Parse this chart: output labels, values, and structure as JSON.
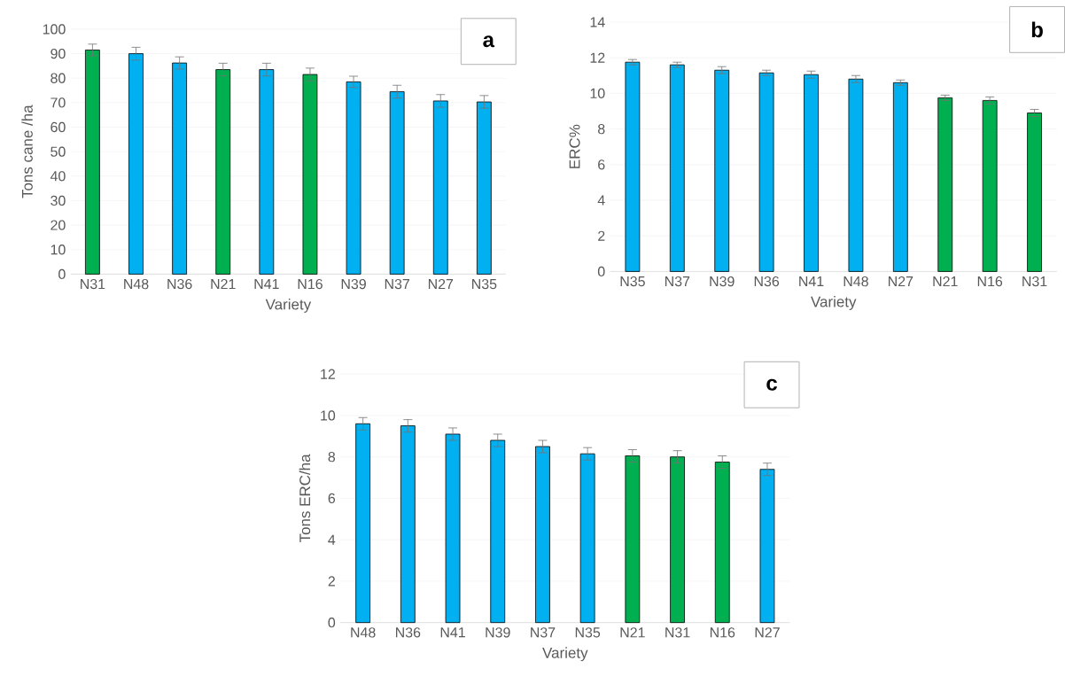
{
  "chart_data": [
    {
      "type": "bar",
      "xlabel": "Variety",
      "ylabel": "Tons cane /ha",
      "annotations": [
        "a"
      ],
      "categories": [
        "N31",
        "N48",
        "N36",
        "N21",
        "N41",
        "N16",
        "N39",
        "N37",
        "N27",
        "N35"
      ],
      "values": [
        91.5,
        90,
        86.2,
        83.5,
        83.5,
        81.5,
        78.5,
        74.5,
        70.7,
        70.3
      ],
      "errors": [
        2.4,
        2.6,
        2.5,
        2.6,
        2.6,
        2.6,
        2.3,
        2.6,
        2.6,
        2.6
      ],
      "colors": [
        "#00b050",
        "#00b0f0",
        "#00b0f0",
        "#00b050",
        "#00b0f0",
        "#00b050",
        "#00b0f0",
        "#00b0f0",
        "#00b0f0",
        "#00b0f0"
      ],
      "ylim": [
        0,
        100
      ],
      "yticks": [
        0,
        10,
        20,
        30,
        40,
        50,
        60,
        70,
        80,
        90,
        100
      ],
      "grid": "y"
    },
    {
      "type": "bar",
      "xlabel": "Variety",
      "ylabel": "ERC%",
      "annotations": [
        "b"
      ],
      "categories": [
        "N35",
        "N37",
        "N39",
        "N36",
        "N41",
        "N48",
        "N27",
        "N21",
        "N16",
        "N31"
      ],
      "values": [
        11.75,
        11.6,
        11.3,
        11.15,
        11.05,
        10.8,
        10.6,
        9.75,
        9.6,
        8.9
      ],
      "errors": [
        0.15,
        0.15,
        0.2,
        0.15,
        0.2,
        0.2,
        0.15,
        0.15,
        0.2,
        0.2
      ],
      "colors": [
        "#00b0f0",
        "#00b0f0",
        "#00b0f0",
        "#00b0f0",
        "#00b0f0",
        "#00b0f0",
        "#00b0f0",
        "#00b050",
        "#00b050",
        "#00b050"
      ],
      "ylim": [
        0,
        14
      ],
      "yticks": [
        0,
        2,
        4,
        6,
        8,
        10,
        12,
        14
      ],
      "grid": "y"
    },
    {
      "type": "bar",
      "xlabel": "Variety",
      "ylabel": "Tons ERC/ha",
      "annotations": [
        "c"
      ],
      "categories": [
        "N48",
        "N36",
        "N41",
        "N39",
        "N37",
        "N35",
        "N21",
        "N31",
        "N16",
        "N27"
      ],
      "values": [
        9.6,
        9.5,
        9.1,
        8.8,
        8.5,
        8.15,
        8.05,
        8.0,
        7.75,
        7.4
      ],
      "errors": [
        0.3,
        0.3,
        0.3,
        0.3,
        0.3,
        0.3,
        0.3,
        0.3,
        0.3,
        0.3
      ],
      "colors": [
        "#00b0f0",
        "#00b0f0",
        "#00b0f0",
        "#00b0f0",
        "#00b0f0",
        "#00b0f0",
        "#00b050",
        "#00b050",
        "#00b050",
        "#00b0f0"
      ],
      "ylim": [
        0,
        12
      ],
      "yticks": [
        0,
        2,
        4,
        6,
        8,
        10,
        12
      ],
      "grid": "y"
    }
  ]
}
